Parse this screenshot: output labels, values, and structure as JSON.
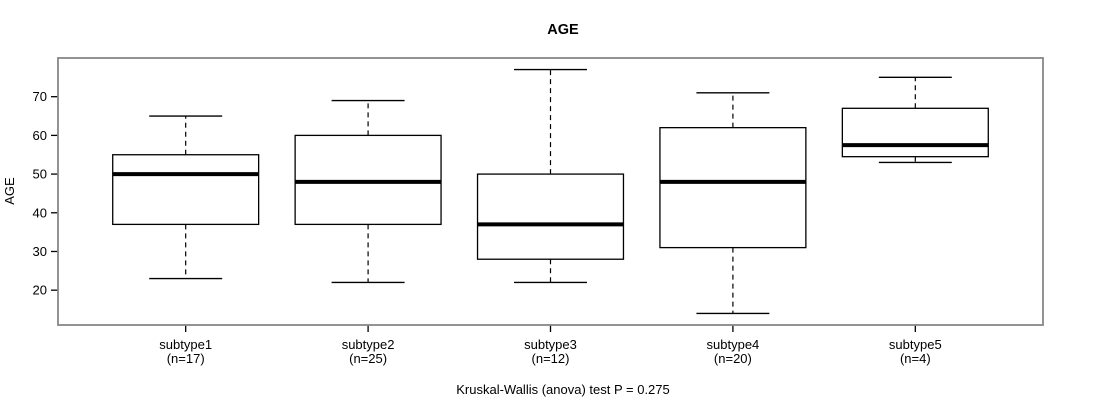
{
  "title": "AGE",
  "chart_data": {
    "type": "boxplot",
    "title": "AGE",
    "xlabel": "",
    "ylabel": "AGE",
    "annotation": "Kruskal-Wallis (anova) test P = 0.275",
    "ylim": [
      11,
      80
    ],
    "yticks": [
      20,
      30,
      40,
      50,
      60,
      70
    ],
    "grid": false,
    "legend": "none",
    "groups": [
      {
        "label": "subtype1",
        "sublabel": "(n=17)",
        "n": 17,
        "whisker_low": 23,
        "q1": 37,
        "median": 50,
        "q3": 55,
        "whisker_high": 65
      },
      {
        "label": "subtype2",
        "sublabel": "(n=25)",
        "n": 25,
        "whisker_low": 22,
        "q1": 37,
        "median": 48,
        "q3": 60,
        "whisker_high": 69
      },
      {
        "label": "subtype3",
        "sublabel": "(n=12)",
        "n": 12,
        "whisker_low": 22,
        "q1": 28,
        "median": 37,
        "q3": 50,
        "whisker_high": 77
      },
      {
        "label": "subtype4",
        "sublabel": "(n=20)",
        "n": 20,
        "whisker_low": 14,
        "q1": 31,
        "median": 48,
        "q3": 62,
        "whisker_high": 71
      },
      {
        "label": "subtype5",
        "sublabel": "(n=4)",
        "n": 4,
        "whisker_low": 53,
        "q1": 54.5,
        "median": 57.5,
        "q3": 67,
        "whisker_high": 75
      }
    ],
    "colors": {
      "box_border": "#000000",
      "box_fill": "#ffffff",
      "median": "#000000",
      "whisker": "#000000",
      "frame": "#878787",
      "tick": "#000000",
      "background": "#ffffff"
    }
  }
}
